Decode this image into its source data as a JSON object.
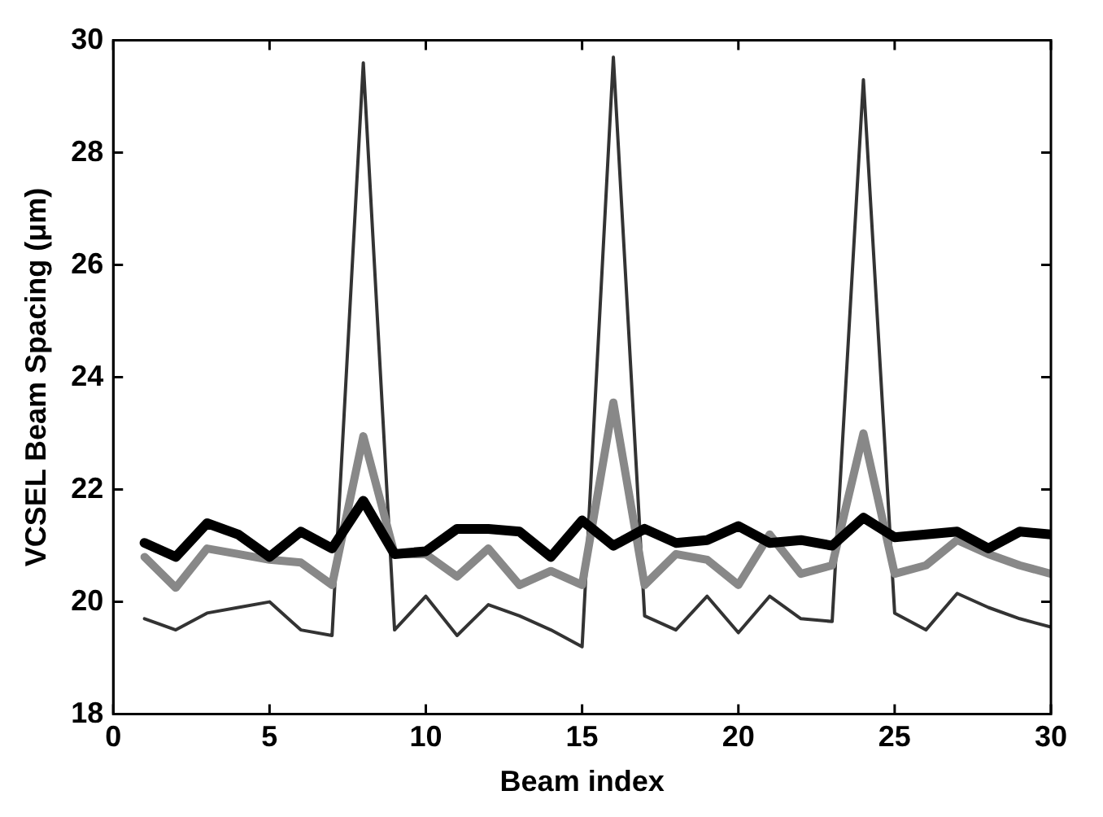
{
  "chart_data": {
    "type": "line",
    "xlabel": "Beam index",
    "ylabel": "VCSEL Beam Spacing (μm)",
    "x": [
      1,
      2,
      3,
      4,
      5,
      6,
      7,
      8,
      9,
      10,
      11,
      12,
      13,
      14,
      15,
      16,
      17,
      18,
      19,
      20,
      21,
      22,
      23,
      24,
      25,
      26,
      27,
      28,
      29,
      30
    ],
    "series": [
      {
        "color": "#333333",
        "values": [
          19.7,
          19.5,
          19.8,
          19.9,
          20.0,
          19.5,
          19.4,
          29.6,
          19.5,
          20.1,
          19.4,
          19.95,
          19.75,
          19.5,
          19.2,
          29.7,
          19.75,
          19.5,
          20.1,
          19.45,
          20.1,
          19.7,
          19.65,
          29.3,
          19.8,
          19.5,
          20.15,
          19.9,
          19.7,
          19.55
        ]
      },
      {
        "color": "#888888",
        "values": [
          20.8,
          20.25,
          20.95,
          20.85,
          20.75,
          20.7,
          20.3,
          22.95,
          20.85,
          20.85,
          20.45,
          20.95,
          20.3,
          20.55,
          20.3,
          23.55,
          20.3,
          20.85,
          20.75,
          20.3,
          21.2,
          20.5,
          20.65,
          23.0,
          20.5,
          20.65,
          21.1,
          20.85,
          20.65,
          20.5
        ]
      },
      {
        "color": "#000000",
        "values": [
          21.05,
          20.8,
          21.4,
          21.2,
          20.8,
          21.25,
          20.95,
          21.8,
          20.85,
          20.9,
          21.3,
          21.3,
          21.25,
          20.8,
          21.45,
          21.0,
          21.3,
          21.05,
          21.1,
          21.35,
          21.05,
          21.1,
          21.0,
          21.5,
          21.15,
          21.2,
          21.25,
          20.95,
          21.25,
          21.2
        ]
      }
    ],
    "xlim": [
      0,
      30
    ],
    "xticks": [
      0,
      5,
      10,
      15,
      20,
      25,
      30
    ],
    "ylim": [
      18,
      30
    ],
    "yticks": [
      18,
      20,
      22,
      24,
      26,
      28,
      30
    ],
    "grid": false,
    "legend": false,
    "marker": "none",
    "line_style": "solid"
  }
}
